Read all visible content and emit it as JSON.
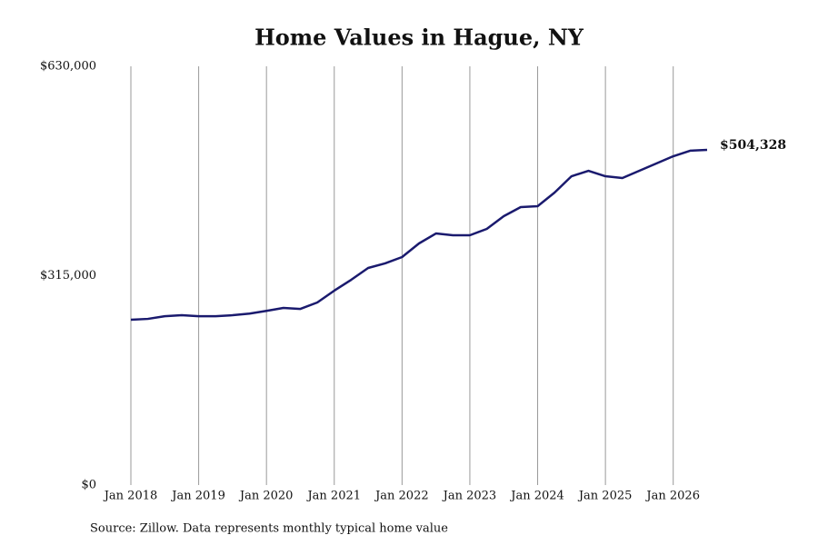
{
  "chart_data": {
    "type": "line",
    "title": "Home Values in Hague, NY",
    "source": "Source: Zillow. Data represents monthly typical home value",
    "x": [
      "2018-01",
      "2018-04",
      "2018-07",
      "2018-10",
      "2019-01",
      "2019-04",
      "2019-07",
      "2019-10",
      "2020-01",
      "2020-04",
      "2020-07",
      "2020-10",
      "2021-01",
      "2021-04",
      "2021-07",
      "2021-10",
      "2022-01",
      "2022-04",
      "2022-07",
      "2022-10",
      "2023-01",
      "2023-04",
      "2023-07",
      "2023-10",
      "2024-01",
      "2024-04",
      "2024-07",
      "2024-10",
      "2025-01",
      "2025-04",
      "2025-07",
      "2025-10",
      "2026-01",
      "2026-04",
      "2026-07"
    ],
    "series": [
      {
        "name": "Home value",
        "color": "#1a1a6e",
        "values": [
          248700,
          250000,
          254000,
          255500,
          254000,
          254000,
          255500,
          258000,
          262000,
          266500,
          265000,
          274700,
          292500,
          308800,
          326600,
          333500,
          343000,
          363500,
          378500,
          375800,
          375800,
          385400,
          404500,
          418200,
          419500,
          440000,
          464600,
          472800,
          464600,
          461900,
          472800,
          483800,
          494700,
          503000,
          504328
        ],
        "value_labels": [
          null,
          null,
          null,
          null,
          null,
          null,
          null,
          null,
          null,
          null,
          null,
          null,
          null,
          null,
          null,
          null,
          null,
          null,
          null,
          null,
          null,
          null,
          null,
          null,
          null,
          null,
          null,
          null,
          null,
          null,
          null,
          null,
          null,
          null,
          "$504,328"
        ]
      }
    ],
    "xlim": [
      "2018-01",
      "2026-07"
    ],
    "xticks": [
      {
        "value": "2018-01",
        "label": "Jan 2018"
      },
      {
        "value": "2019-01",
        "label": "Jan 2019"
      },
      {
        "value": "2020-01",
        "label": "Jan 2020"
      },
      {
        "value": "2021-01",
        "label": "Jan 2021"
      },
      {
        "value": "2022-01",
        "label": "Jan 2022"
      },
      {
        "value": "2023-01",
        "label": "Jan 2023"
      },
      {
        "value": "2024-01",
        "label": "Jan 2024"
      },
      {
        "value": "2025-01",
        "label": "Jan 2025"
      },
      {
        "value": "2026-01",
        "label": "Jan 2026"
      }
    ],
    "ylim": [
      0,
      630000
    ],
    "yticks": [
      {
        "value": 0,
        "label": "$0"
      },
      {
        "value": 315000,
        "label": "$315,000"
      },
      {
        "value": 630000,
        "label": "$630,000"
      }
    ],
    "grid": "x"
  }
}
